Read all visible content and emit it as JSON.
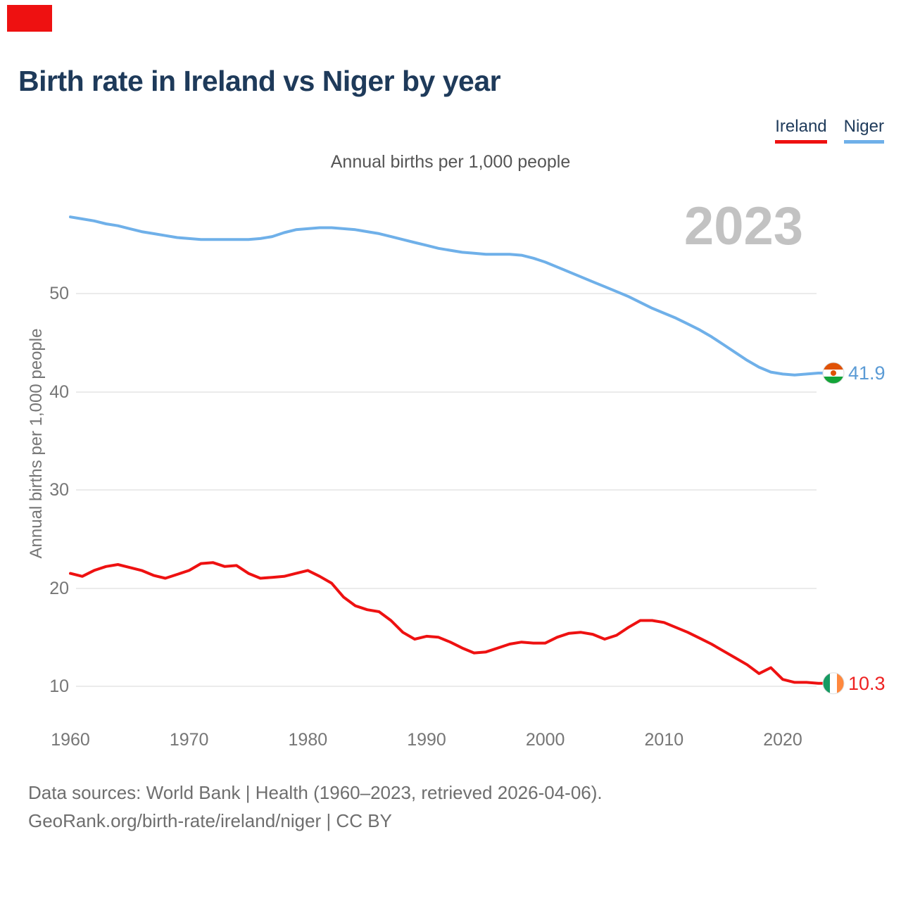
{
  "page": {
    "title": "Birth rate in Ireland vs Niger by year",
    "subtitle": "Annual births per 1,000 people",
    "watermark_year": "2023",
    "corner_marker_color": "#ee1111",
    "footer_line1": "Data sources: World Bank | Health (1960–2023, retrieved 2026-04-06).",
    "footer_line2": "GeoRank.org/birth-rate/ireland/niger | CC BY"
  },
  "legend": {
    "items": [
      {
        "label": "Ireland",
        "color": "#ee1111"
      },
      {
        "label": "Niger",
        "color": "#6fb0e9"
      }
    ]
  },
  "axes": {
    "y_axis_title": "Annual births per 1,000 people",
    "y_ticks": [
      50,
      40,
      30,
      20,
      10
    ],
    "x_ticks": [
      1960,
      1970,
      1980,
      1990,
      2000,
      2010,
      2020
    ]
  },
  "end_labels": {
    "niger": {
      "value": "41.9",
      "flag": "niger-flag",
      "color": "#5b9bd5"
    },
    "ireland": {
      "value": "10.3",
      "flag": "ireland-flag",
      "color": "#ee2222"
    }
  },
  "flag_colors": {
    "niger": {
      "top": "#e05206",
      "middle": "#ffffff",
      "bottom": "#13a438",
      "dot": "#e05206"
    },
    "ireland": {
      "left": "#169b62",
      "middle": "#ffffff",
      "right": "#ff883e"
    }
  },
  "chart_data": {
    "type": "line",
    "title": "Birth rate in Ireland vs Niger by year",
    "subtitle": "Annual births per 1,000 people",
    "xlabel": "",
    "ylabel": "Annual births per 1,000 people",
    "xlim": [
      1960,
      2023
    ],
    "ylim": [
      8,
      59
    ],
    "yticks": [
      10,
      20,
      30,
      40,
      50
    ],
    "grid": true,
    "legend_position": "top-right",
    "watermark": "2023",
    "x": [
      1960,
      1961,
      1962,
      1963,
      1964,
      1965,
      1966,
      1967,
      1968,
      1969,
      1970,
      1971,
      1972,
      1973,
      1974,
      1975,
      1976,
      1977,
      1978,
      1979,
      1980,
      1981,
      1982,
      1983,
      1984,
      1985,
      1986,
      1987,
      1988,
      1989,
      1990,
      1991,
      1992,
      1993,
      1994,
      1995,
      1996,
      1997,
      1998,
      1999,
      2000,
      2001,
      2002,
      2003,
      2004,
      2005,
      2006,
      2007,
      2008,
      2009,
      2010,
      2011,
      2012,
      2013,
      2014,
      2015,
      2016,
      2017,
      2018,
      2019,
      2020,
      2021,
      2022,
      2023
    ],
    "series": [
      {
        "name": "Ireland",
        "color": "#ee1111",
        "end_label": 10.3,
        "values": [
          21.5,
          21.2,
          21.8,
          22.2,
          22.4,
          22.1,
          21.8,
          21.3,
          21.0,
          21.4,
          21.8,
          22.5,
          22.6,
          22.2,
          22.3,
          21.5,
          21.0,
          21.1,
          21.2,
          21.5,
          21.8,
          21.2,
          20.5,
          19.1,
          18.2,
          17.8,
          17.6,
          16.7,
          15.5,
          14.8,
          15.1,
          15.0,
          14.5,
          13.9,
          13.4,
          13.5,
          13.9,
          14.3,
          14.5,
          14.4,
          14.4,
          15.0,
          15.4,
          15.5,
          15.3,
          14.8,
          15.2,
          16.0,
          16.7,
          16.7,
          16.5,
          16.0,
          15.5,
          14.9,
          14.3,
          13.6,
          12.9,
          12.2,
          11.3,
          11.9,
          10.7,
          10.4,
          10.4,
          10.3
        ]
      },
      {
        "name": "Niger",
        "color": "#6fb0e9",
        "end_label": 41.9,
        "values": [
          57.8,
          57.6,
          57.4,
          57.1,
          56.9,
          56.6,
          56.3,
          56.1,
          55.9,
          55.7,
          55.6,
          55.5,
          55.5,
          55.5,
          55.5,
          55.5,
          55.6,
          55.8,
          56.2,
          56.5,
          56.6,
          56.7,
          56.7,
          56.6,
          56.5,
          56.3,
          56.1,
          55.8,
          55.5,
          55.2,
          54.9,
          54.6,
          54.4,
          54.2,
          54.1,
          54.0,
          54.0,
          54.0,
          53.9,
          53.6,
          53.2,
          52.7,
          52.2,
          51.7,
          51.2,
          50.7,
          50.2,
          49.7,
          49.1,
          48.5,
          48.0,
          47.5,
          46.9,
          46.3,
          45.6,
          44.8,
          44.0,
          43.2,
          42.5,
          42.0,
          41.8,
          41.7,
          41.8,
          41.9
        ]
      }
    ]
  }
}
